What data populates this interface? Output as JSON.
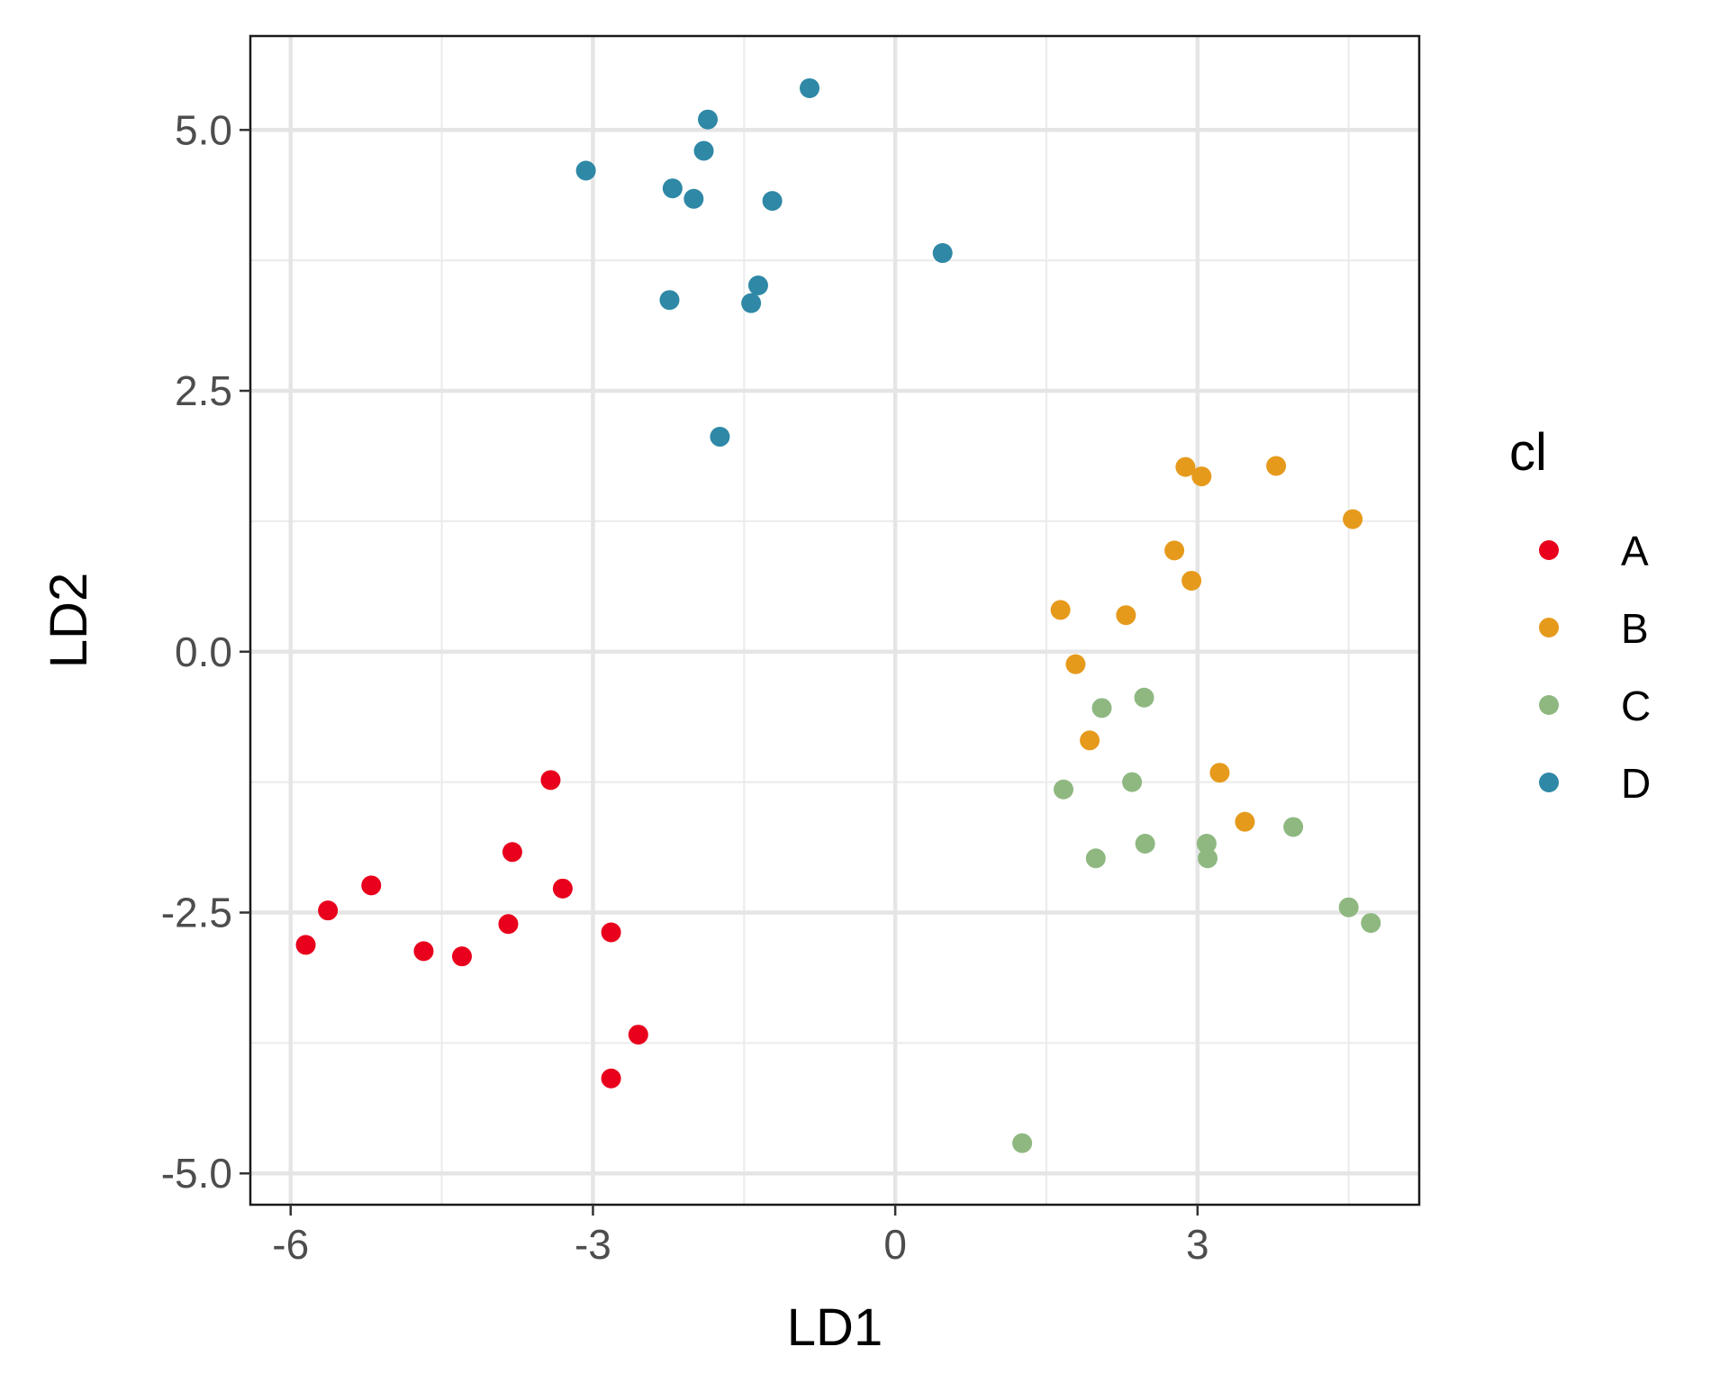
{
  "chart_data": {
    "type": "scatter",
    "title": "",
    "xlabel": "LD1",
    "ylabel": "LD2",
    "xlim": [
      -6.4,
      5.2
    ],
    "ylim": [
      -5.3,
      5.9
    ],
    "x_ticks": [
      -6,
      -3,
      0,
      3
    ],
    "x_tick_labels": [
      "-6",
      "-3",
      "0",
      "3"
    ],
    "y_ticks": [
      -5,
      -2.5,
      0,
      2.5,
      5
    ],
    "y_tick_labels": [
      "-5.0",
      "-2.5",
      "0.0",
      "2.5",
      "5.0"
    ],
    "grid": true,
    "legend": {
      "title": "cl",
      "position": "right"
    },
    "series": [
      {
        "name": "A",
        "color": "#e8001c",
        "points": [
          [
            -5.85,
            -2.81
          ],
          [
            -5.63,
            -2.48
          ],
          [
            -5.2,
            -2.24
          ],
          [
            -4.68,
            -2.87
          ],
          [
            -4.3,
            -2.92
          ],
          [
            -3.84,
            -2.61
          ],
          [
            -3.8,
            -1.92
          ],
          [
            -3.42,
            -1.23
          ],
          [
            -3.3,
            -2.27
          ],
          [
            -2.82,
            -2.69
          ],
          [
            -2.55,
            -3.67
          ],
          [
            -2.82,
            -4.09
          ]
        ]
      },
      {
        "name": "B",
        "color": "#e69a1c",
        "points": [
          [
            2.88,
            1.77
          ],
          [
            3.04,
            1.68
          ],
          [
            3.78,
            1.78
          ],
          [
            4.54,
            1.27
          ],
          [
            2.77,
            0.97
          ],
          [
            2.94,
            0.68
          ],
          [
            1.64,
            0.4
          ],
          [
            2.29,
            0.35
          ],
          [
            1.79,
            -0.12
          ],
          [
            1.93,
            -0.85
          ],
          [
            3.22,
            -1.16
          ],
          [
            3.47,
            -1.63
          ]
        ]
      },
      {
        "name": "C",
        "color": "#8fb881",
        "points": [
          [
            2.05,
            -0.54
          ],
          [
            2.47,
            -0.44
          ],
          [
            1.67,
            -1.32
          ],
          [
            2.35,
            -1.25
          ],
          [
            1.99,
            -1.98
          ],
          [
            2.48,
            -1.84
          ],
          [
            3.09,
            -1.84
          ],
          [
            3.1,
            -1.98
          ],
          [
            3.95,
            -1.68
          ],
          [
            4.5,
            -2.45
          ],
          [
            4.72,
            -2.6
          ],
          [
            1.26,
            -4.71
          ]
        ]
      },
      {
        "name": "D",
        "color": "#2e88a6",
        "points": [
          [
            -0.85,
            5.4
          ],
          [
            -1.86,
            5.1
          ],
          [
            -1.9,
            4.8
          ],
          [
            -3.07,
            4.61
          ],
          [
            -2.21,
            4.44
          ],
          [
            -2.0,
            4.34
          ],
          [
            -1.22,
            4.32
          ],
          [
            0.47,
            3.82
          ],
          [
            -1.36,
            3.51
          ],
          [
            -2.24,
            3.37
          ],
          [
            -1.43,
            3.34
          ],
          [
            -1.74,
            2.06
          ]
        ]
      }
    ]
  }
}
